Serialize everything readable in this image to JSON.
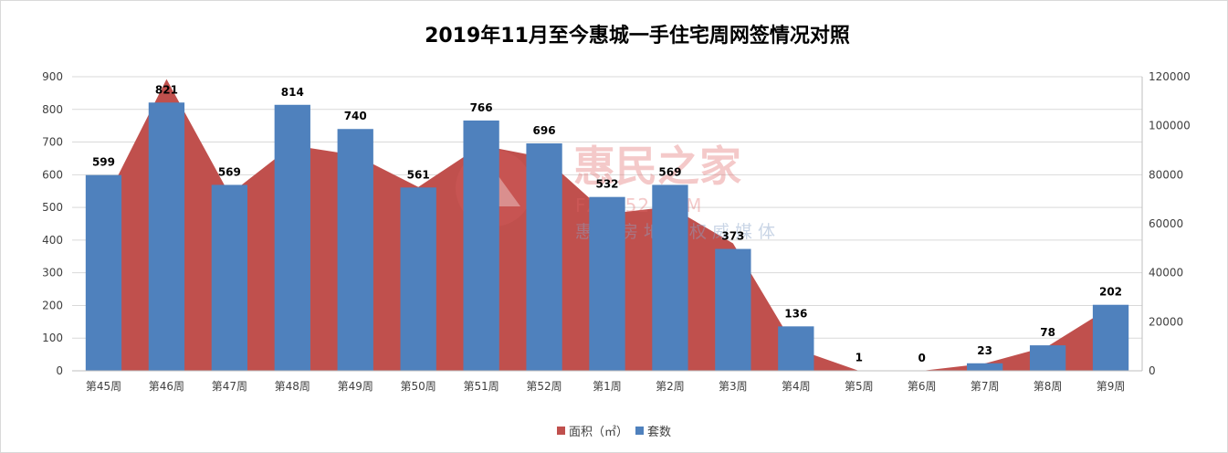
{
  "chart_data": {
    "type": "bar",
    "title": "2019年11月至今惠城一手住宅周网签情况对照",
    "categories": [
      "第45周",
      "第46周",
      "第47周",
      "第48周",
      "第49周",
      "第50周",
      "第51周",
      "第52周",
      "第1周",
      "第2周",
      "第3周",
      "第4周",
      "第5周",
      "第6周",
      "第7周",
      "第8周",
      "第9周"
    ],
    "series": [
      {
        "name": "面积（㎡）",
        "kind": "area",
        "axis": "right",
        "color": "#c0504d",
        "values": [
          68000,
          119000,
          72000,
          92000,
          88000,
          75000,
          92000,
          87000,
          64000,
          67000,
          52000,
          9000,
          0,
          0,
          3000,
          10000,
          26000
        ]
      },
      {
        "name": "套数",
        "kind": "bar",
        "axis": "left",
        "color": "#4f81bd",
        "values": [
          599,
          821,
          569,
          814,
          740,
          561,
          766,
          696,
          532,
          569,
          373,
          136,
          1,
          0,
          23,
          78,
          202
        ]
      }
    ],
    "y_left": {
      "ylim": [
        0,
        900
      ],
      "ticks": [
        "0",
        "100",
        "200",
        "300",
        "400",
        "500",
        "600",
        "700",
        "800",
        "900"
      ]
    },
    "y_right": {
      "ylim": [
        0,
        120000
      ],
      "ticks": [
        "0",
        "20000",
        "40000",
        "60000",
        "80000",
        "100000",
        "120000"
      ]
    },
    "grid": true,
    "legend_position": "bottom"
  },
  "watermark": {
    "brand": "惠民之家",
    "url": "FZ0752.COM",
    "tagline": "惠州房地产权威媒体"
  }
}
